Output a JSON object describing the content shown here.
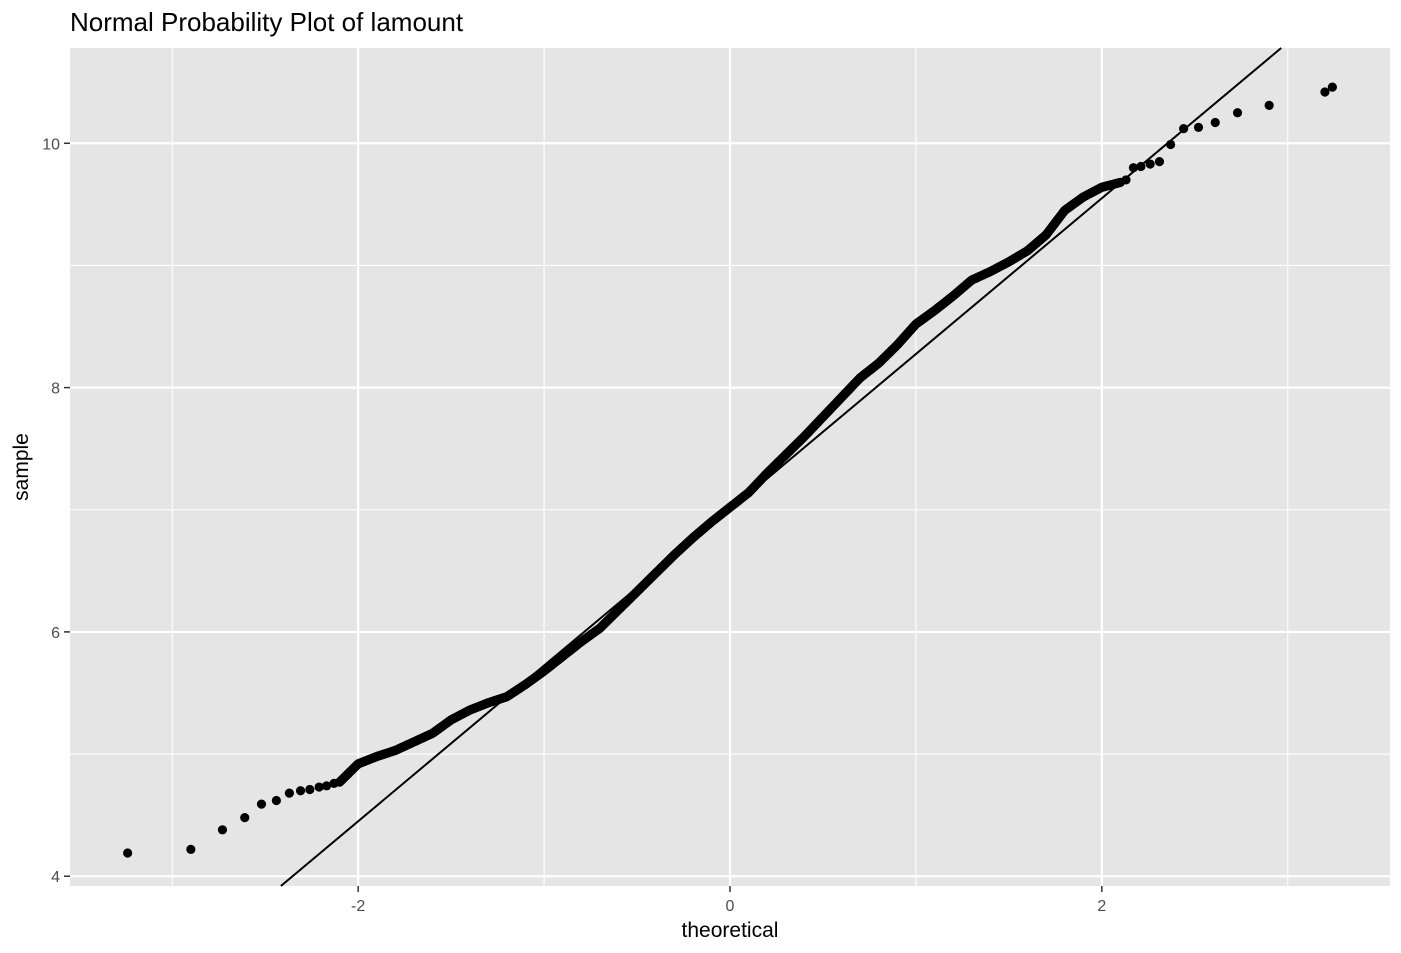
{
  "chart_data": {
    "type": "scatter",
    "title": "Normal Probability Plot of lamount",
    "xlabel": "theoretical",
    "ylabel": "sample",
    "xlim": [
      -3.55,
      3.55
    ],
    "ylim": [
      3.92,
      10.78
    ],
    "x_ticks": [
      -2,
      0,
      2
    ],
    "x_tick_labels": [
      "-2",
      "0",
      "2"
    ],
    "x_minor_ticks": [
      -3,
      -1,
      1,
      3
    ],
    "y_ticks": [
      4,
      6,
      8,
      10
    ],
    "y_tick_labels": [
      "4",
      "6",
      "8",
      "10"
    ],
    "y_minor_ticks": [
      5,
      7,
      9
    ],
    "grid": true,
    "legend": "none",
    "panel_color": "#e5e5e5",
    "grid_color": "#ffffff",
    "point_color": "#000000",
    "reference_line": {
      "intercept": 7.0,
      "slope": 1.275
    },
    "curve_anchors": [
      [
        -2.1,
        4.77
      ],
      [
        -2.0,
        4.92
      ],
      [
        -1.9,
        4.98
      ],
      [
        -1.8,
        5.03
      ],
      [
        -1.7,
        5.1
      ],
      [
        -1.6,
        5.17
      ],
      [
        -1.5,
        5.28
      ],
      [
        -1.4,
        5.36
      ],
      [
        -1.3,
        5.42
      ],
      [
        -1.2,
        5.47
      ],
      [
        -1.1,
        5.57
      ],
      [
        -1.0,
        5.68
      ],
      [
        -0.9,
        5.8
      ],
      [
        -0.8,
        5.92
      ],
      [
        -0.7,
        6.03
      ],
      [
        -0.6,
        6.18
      ],
      [
        -0.5,
        6.33
      ],
      [
        -0.4,
        6.48
      ],
      [
        -0.3,
        6.63
      ],
      [
        -0.2,
        6.77
      ],
      [
        -0.1,
        6.9
      ],
      [
        0.0,
        7.02
      ],
      [
        0.1,
        7.14
      ],
      [
        0.2,
        7.3
      ],
      [
        0.3,
        7.45
      ],
      [
        0.4,
        7.6
      ],
      [
        0.5,
        7.76
      ],
      [
        0.6,
        7.92
      ],
      [
        0.7,
        8.08
      ],
      [
        0.8,
        8.2
      ],
      [
        0.9,
        8.35
      ],
      [
        1.0,
        8.52
      ],
      [
        1.1,
        8.63
      ],
      [
        1.2,
        8.75
      ],
      [
        1.3,
        8.88
      ],
      [
        1.4,
        8.95
      ],
      [
        1.5,
        9.03
      ],
      [
        1.6,
        9.12
      ],
      [
        1.7,
        9.25
      ],
      [
        1.8,
        9.45
      ],
      [
        1.9,
        9.56
      ],
      [
        2.0,
        9.64
      ],
      [
        2.1,
        9.68
      ]
    ],
    "tail_points": [
      [
        -3.24,
        4.19
      ],
      [
        -2.9,
        4.22
      ],
      [
        -2.73,
        4.38
      ],
      [
        -2.61,
        4.48
      ],
      [
        -2.52,
        4.59
      ],
      [
        -2.44,
        4.62
      ],
      [
        -2.37,
        4.68
      ],
      [
        -2.31,
        4.7
      ],
      [
        -2.26,
        4.71
      ],
      [
        -2.21,
        4.73
      ],
      [
        -2.17,
        4.74
      ],
      [
        -2.13,
        4.76
      ],
      [
        2.13,
        9.7
      ],
      [
        2.17,
        9.8
      ],
      [
        2.21,
        9.81
      ],
      [
        2.26,
        9.83
      ],
      [
        2.31,
        9.85
      ],
      [
        2.37,
        9.99
      ],
      [
        2.44,
        10.12
      ],
      [
        2.52,
        10.13
      ],
      [
        2.61,
        10.17
      ],
      [
        2.73,
        10.25
      ],
      [
        2.9,
        10.31
      ],
      [
        3.24,
        10.46
      ],
      [
        3.2,
        10.42
      ]
    ],
    "n_dense_points": 1000
  }
}
